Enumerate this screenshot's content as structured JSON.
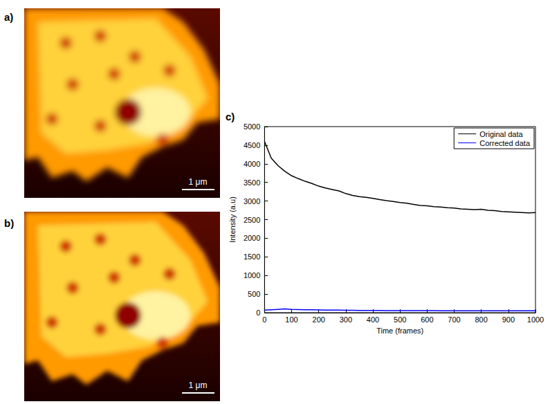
{
  "images": [
    {
      "label": "a)",
      "scale_bar": "1 μm"
    },
    {
      "label": "b)",
      "scale_bar": "1 μm"
    }
  ],
  "chart_label": "c)",
  "chart_data": {
    "type": "line",
    "x_label": "Time (frames)",
    "y_label": "Intensity (a.u)",
    "x": [
      0,
      25,
      50,
      75,
      100,
      125,
      150,
      175,
      200,
      225,
      250,
      275,
      300,
      325,
      350,
      375,
      400,
      425,
      450,
      475,
      500,
      525,
      550,
      575,
      600,
      625,
      650,
      675,
      700,
      725,
      750,
      775,
      800,
      825,
      850,
      875,
      900,
      925,
      950,
      975,
      1000
    ],
    "series": [
      {
        "name": "Original data",
        "color": "#000000",
        "values": [
          4600,
          4150,
          3950,
          3800,
          3680,
          3600,
          3530,
          3470,
          3400,
          3350,
          3310,
          3270,
          3200,
          3150,
          3120,
          3100,
          3070,
          3040,
          3010,
          2990,
          2960,
          2940,
          2910,
          2880,
          2870,
          2850,
          2840,
          2820,
          2810,
          2790,
          2780,
          2770,
          2780,
          2750,
          2740,
          2720,
          2710,
          2700,
          2690,
          2680,
          2690
        ]
      },
      {
        "name": "Corrected data",
        "color": "#0000ff",
        "values": [
          70,
          80,
          90,
          100,
          90,
          85,
          80,
          78,
          75,
          72,
          70,
          68,
          65,
          64,
          62,
          61,
          60,
          59,
          58,
          57,
          55,
          55,
          55,
          55,
          55,
          54,
          53,
          52,
          50,
          50,
          50,
          50,
          50,
          50,
          50,
          50,
          50,
          50,
          50,
          50,
          50
        ]
      }
    ],
    "xlim": [
      0,
      1000
    ],
    "xticks": [
      0,
      100,
      200,
      300,
      400,
      500,
      600,
      700,
      800,
      900,
      1000
    ],
    "ylim": [
      0,
      5000
    ],
    "yticks": [
      0,
      500,
      1000,
      1500,
      2000,
      2500,
      3000,
      3500,
      4000,
      4500,
      5000
    ],
    "grid": false,
    "legend": "upper right"
  }
}
